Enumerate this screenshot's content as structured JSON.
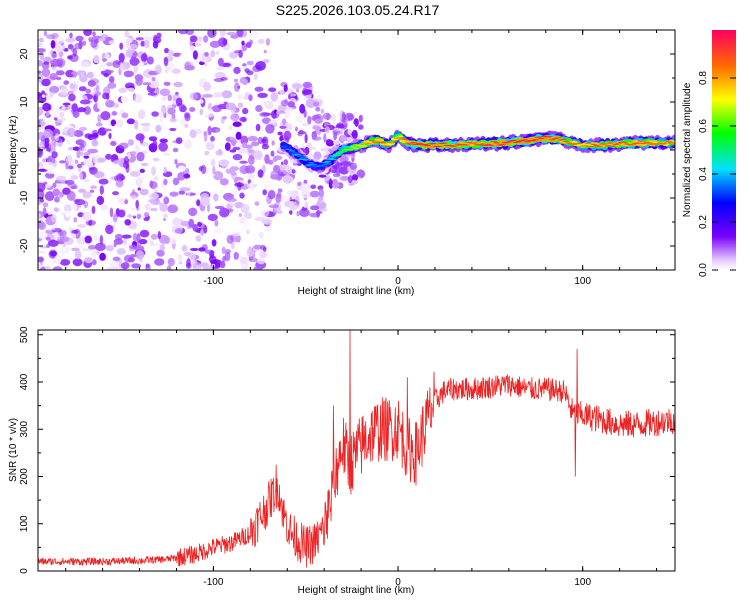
{
  "figure": {
    "title": "S225.2026.103.05.24.R17"
  },
  "chart_data": [
    {
      "type": "heatmap",
      "panel": "spectrogram",
      "xlabel": "Height of straight line (km)",
      "ylabel": "Frequency (Hz)",
      "xlim": [
        -195,
        150
      ],
      "ylim": [
        -25,
        25
      ],
      "xticks": [
        -100,
        0,
        100
      ],
      "yticks": [
        -20,
        -10,
        0,
        10,
        20
      ],
      "colorbar": {
        "label": "Normalized spectral amplitude",
        "range": [
          0,
          1
        ],
        "ticks": [
          0.0,
          0.2,
          0.4,
          0.6,
          0.8
        ]
      },
      "dominant_line": {
        "description": "strong carrier ridge",
        "x": [
          -62,
          -55,
          -48,
          -42,
          -36,
          -30,
          -20,
          -12,
          -5,
          0,
          5,
          10,
          20,
          40,
          60,
          80,
          90,
          100,
          110,
          130,
          150
        ],
        "y": [
          1,
          -1,
          -3,
          -3.5,
          -2,
          0,
          1,
          2,
          1,
          3,
          1.5,
          1,
          1,
          1.2,
          1.5,
          2.5,
          2,
          1,
          1,
          1.5,
          1.5
        ],
        "amplitude": [
          0.35,
          0.4,
          0.4,
          0.35,
          0.45,
          0.6,
          0.75,
          0.9,
          0.85,
          0.8,
          0.9,
          0.95,
          0.95,
          0.9,
          0.95,
          0.95,
          0.9,
          0.85,
          0.9,
          0.9,
          0.85
        ]
      },
      "noise_region": {
        "description": "scattered low-amplitude noise",
        "x_range": [
          -195,
          -30
        ],
        "y_range": [
          -25,
          25
        ],
        "amplitude_range": [
          0.0,
          0.15
        ]
      }
    },
    {
      "type": "line",
      "panel": "snr",
      "xlabel": "Height of straight line (km)",
      "ylabel": "SNR (10 * v/v)",
      "xlim": [
        -195,
        150
      ],
      "ylim": [
        0,
        510
      ],
      "xticks": [
        -100,
        0,
        100
      ],
      "yticks": [
        0,
        100,
        200,
        300,
        400,
        500
      ],
      "series": [
        {
          "name": "SNR",
          "color": "#ee2222",
          "x": [
            -195,
            -180,
            -160,
            -140,
            -125,
            -110,
            -100,
            -90,
            -80,
            -72,
            -68,
            -65,
            -62,
            -58,
            -50,
            -45,
            -40,
            -37,
            -35,
            -33,
            -30,
            -27,
            -25,
            -22,
            -20,
            -15,
            -10,
            -5,
            0,
            5,
            10,
            15,
            20,
            25,
            30,
            40,
            50,
            60,
            70,
            80,
            90,
            95,
            100,
            110,
            120,
            130,
            140,
            150
          ],
          "y": [
            20,
            20,
            20,
            22,
            25,
            35,
            50,
            60,
            80,
            130,
            160,
            180,
            120,
            80,
            50,
            60,
            90,
            130,
            170,
            220,
            270,
            230,
            230,
            250,
            265,
            290,
            300,
            300,
            305,
            260,
            250,
            310,
            360,
            380,
            385,
            385,
            390,
            395,
            385,
            385,
            380,
            330,
            330,
            320,
            310,
            310,
            315,
            320
          ],
          "spikes": [
            {
              "x": -26,
              "y": 510
            },
            {
              "x": -35,
              "y": 350
            },
            {
              "x": -66,
              "y": 225
            },
            {
              "x": -38,
              "y": 170
            },
            {
              "x": 5,
              "y": 410
            },
            {
              "x": 97,
              "y": 470
            },
            {
              "x": 96,
              "y": 200
            }
          ]
        }
      ]
    }
  ]
}
